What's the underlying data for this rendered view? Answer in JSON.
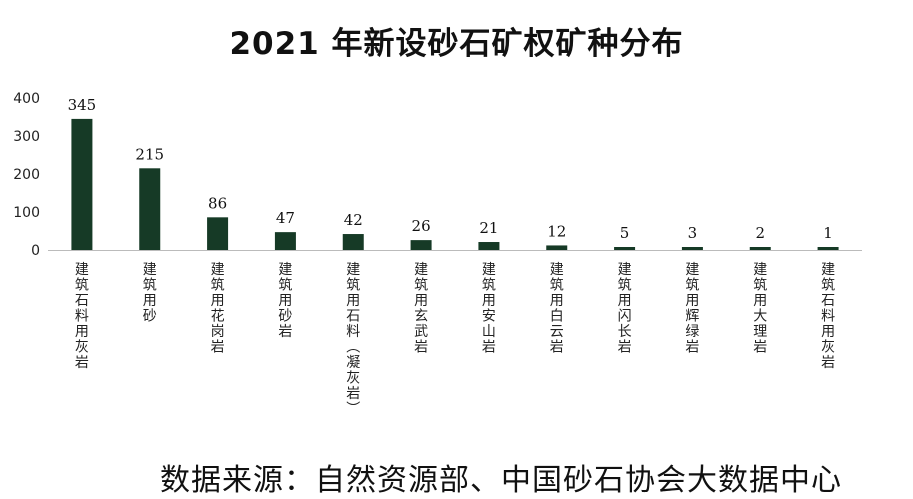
{
  "chart_data": {
    "type": "bar",
    "title": "2021 年新设砂石矿权矿种分布",
    "categories": [
      "建筑石料用灰岩",
      "建筑用砂",
      "建筑用花岗岩",
      "建筑用砂岩",
      "建筑用石料(凝灰岩)",
      "建筑用玄武岩",
      "建筑用安山岩",
      "建筑用白云岩",
      "建筑用闪长岩",
      "建筑用辉绿岩",
      "建筑用大理岩",
      "建筑石料用灰岩"
    ],
    "values": [
      345,
      215,
      86,
      47,
      42,
      26,
      21,
      12,
      5,
      3,
      2,
      1
    ],
    "ylim": [
      0,
      400
    ],
    "yticks": [
      "0",
      "100",
      "200",
      "300",
      "400"
    ],
    "xlabel": "",
    "ylabel": "",
    "grid": false,
    "bar_color": "#163a26"
  },
  "source": "数据来源：自然资源部、中国砂石协会大数据中心"
}
